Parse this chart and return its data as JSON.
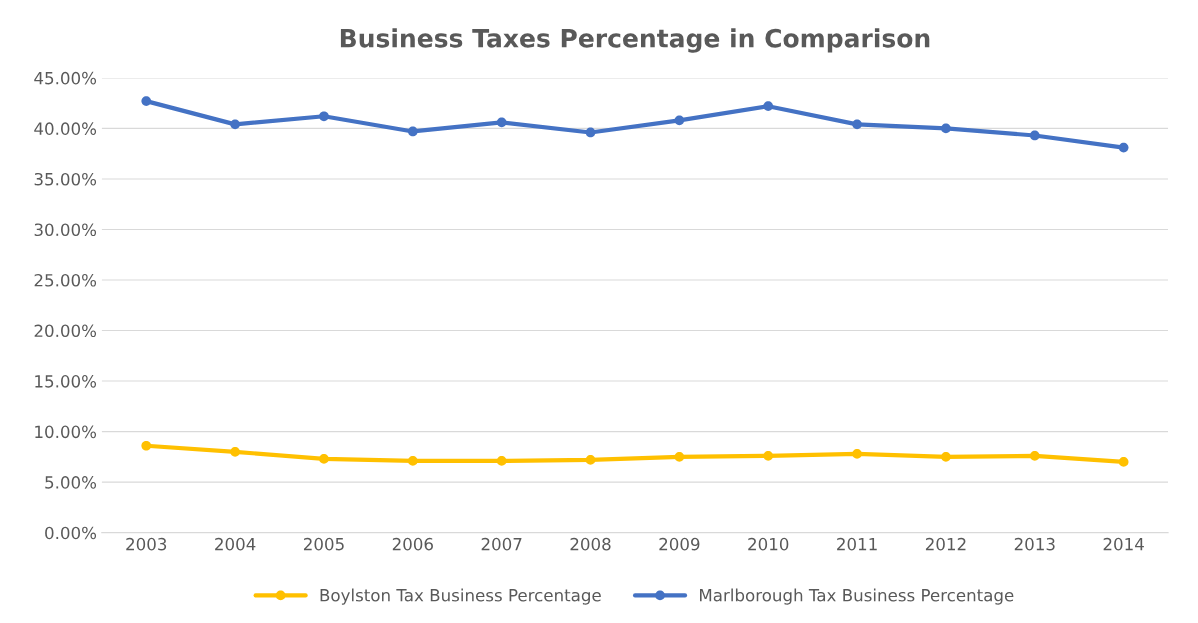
{
  "chart_data": {
    "type": "line",
    "title": "Business Taxes Percentage in Comparison",
    "categories": [
      "2003",
      "2004",
      "2005",
      "2006",
      "2007",
      "2008",
      "2009",
      "2010",
      "2011",
      "2012",
      "2013",
      "2014"
    ],
    "series": [
      {
        "name": "Boylston Tax Business Percentage",
        "color": "#ffc000",
        "values": [
          8.6,
          8.0,
          7.3,
          7.1,
          7.1,
          7.2,
          7.5,
          7.6,
          7.8,
          7.5,
          7.6,
          7.0
        ]
      },
      {
        "name": "Marlborough Tax Business Percentage",
        "color": "#4472c4",
        "values": [
          42.7,
          40.4,
          41.2,
          39.7,
          40.6,
          39.6,
          40.8,
          42.2,
          40.4,
          40.0,
          39.3,
          38.1
        ]
      }
    ],
    "ylim": [
      0,
      45
    ],
    "yticks": [
      {
        "value": 0,
        "label": "0.00%"
      },
      {
        "value": 5,
        "label": "5.00%"
      },
      {
        "value": 10,
        "label": "10.00%"
      },
      {
        "value": 15,
        "label": "15.00%"
      },
      {
        "value": 20,
        "label": "20.00%"
      },
      {
        "value": 25,
        "label": "25.00%"
      },
      {
        "value": 30,
        "label": "30.00%"
      },
      {
        "value": 35,
        "label": "35.00%"
      },
      {
        "value": 40,
        "label": "40.00%"
      },
      {
        "value": 45,
        "label": "45.00%"
      }
    ],
    "grid": "y",
    "legend": "bottom",
    "marker": "circle",
    "line_style": "solid"
  }
}
